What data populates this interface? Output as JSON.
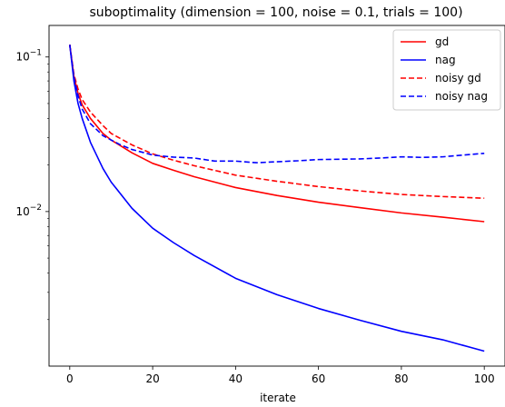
{
  "chart_data": {
    "type": "line",
    "title": "suboptimality (dimension = 100, noise = 0.1, trials = 100)",
    "xlabel": "iterate",
    "ylabel": "",
    "xlim": [
      -5,
      105
    ],
    "ylim": [
      0.001,
      0.16
    ],
    "yscale": "log",
    "xticks": [
      0,
      20,
      40,
      60,
      80,
      100
    ],
    "xtick_labels": [
      "0",
      "20",
      "40",
      "60",
      "80",
      "100"
    ],
    "yticks": [
      0.1,
      0.01
    ],
    "ytick_labels": [
      {
        "base": "10",
        "exp": "−1"
      },
      {
        "base": "10",
        "exp": "−2"
      }
    ],
    "grid": false,
    "legend_position": "top-right",
    "series": [
      {
        "name": "gd",
        "color": "#ff0000",
        "dash": "solid",
        "x": [
          0,
          1,
          2,
          3,
          5,
          8,
          10,
          15,
          20,
          25,
          30,
          40,
          50,
          60,
          70,
          80,
          90,
          100
        ],
        "y": [
          0.12,
          0.075,
          0.058,
          0.049,
          0.04,
          0.032,
          0.029,
          0.024,
          0.0205,
          0.0185,
          0.0168,
          0.0143,
          0.0127,
          0.0115,
          0.0106,
          0.0098,
          0.0092,
          0.0086
        ]
      },
      {
        "name": "nag",
        "color": "#0000ff",
        "dash": "solid",
        "x": [
          0,
          1,
          2,
          3,
          5,
          8,
          10,
          15,
          20,
          25,
          30,
          40,
          50,
          60,
          70,
          80,
          90,
          100
        ],
        "y": [
          0.12,
          0.07,
          0.05,
          0.04,
          0.028,
          0.019,
          0.0155,
          0.0105,
          0.0078,
          0.0063,
          0.0052,
          0.0037,
          0.0029,
          0.00236,
          0.00198,
          0.00168,
          0.00148,
          0.00125
        ]
      },
      {
        "name": "noisy gd",
        "color": "#ff0000",
        "dash": "dashed",
        "x": [
          0,
          1,
          2,
          3,
          5,
          8,
          10,
          15,
          20,
          25,
          30,
          40,
          50,
          60,
          70,
          80,
          90,
          100
        ],
        "y": [
          0.12,
          0.077,
          0.062,
          0.053,
          0.044,
          0.036,
          0.032,
          0.027,
          0.0236,
          0.0215,
          0.0198,
          0.0172,
          0.0157,
          0.0145,
          0.0136,
          0.0129,
          0.0125,
          0.0122
        ]
      },
      {
        "name": "noisy nag",
        "color": "#0000ff",
        "dash": "dashed",
        "x": [
          0,
          1,
          2,
          3,
          5,
          8,
          10,
          12,
          15,
          18,
          20,
          25,
          30,
          35,
          40,
          45,
          50,
          55,
          60,
          65,
          70,
          75,
          80,
          85,
          90,
          95,
          100
        ],
        "y": [
          0.12,
          0.074,
          0.056,
          0.046,
          0.037,
          0.031,
          0.029,
          0.0272,
          0.0252,
          0.024,
          0.0232,
          0.0225,
          0.0222,
          0.0212,
          0.0212,
          0.0207,
          0.021,
          0.0213,
          0.0217,
          0.0218,
          0.0219,
          0.0222,
          0.0226,
          0.0224,
          0.0226,
          0.0232,
          0.0238
        ]
      }
    ]
  }
}
